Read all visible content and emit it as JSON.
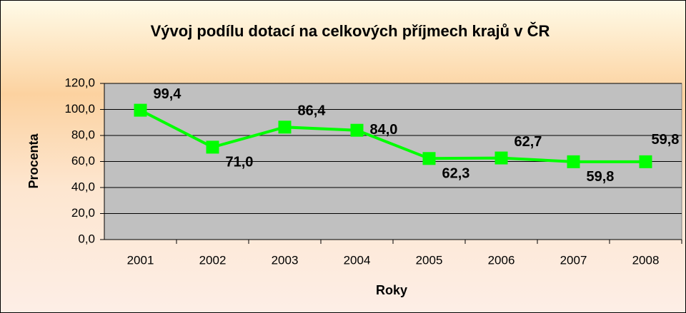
{
  "chart_data": {
    "type": "line",
    "title": "Vývoj podílu dotací na celkových příjmech krajů v ČR",
    "x_label": "Roky",
    "y_label": "Procenta",
    "categories": [
      "2001",
      "2002",
      "2003",
      "2004",
      "2005",
      "2006",
      "2007",
      "2008"
    ],
    "series": [
      {
        "name": "Procenta",
        "color": "#00ff00",
        "values": [
          99.4,
          71.0,
          86.4,
          84.0,
          62.3,
          62.7,
          59.8,
          59.8
        ],
        "value_labels": [
          "99,4",
          "71,0",
          "86,4",
          "84,0",
          "62,3",
          "62,7",
          "59,8",
          "59,8"
        ]
      }
    ],
    "ylim": [
      0,
      120
    ],
    "yticks": [
      {
        "value": 0,
        "label": "0,0"
      },
      {
        "value": 20,
        "label": "20,0"
      },
      {
        "value": 40,
        "label": "40,0"
      },
      {
        "value": 60,
        "label": "60,0"
      },
      {
        "value": 80,
        "label": "80,0"
      },
      {
        "value": 100,
        "label": "100,0"
      },
      {
        "value": 120,
        "label": "120,0"
      }
    ],
    "grid": true
  }
}
